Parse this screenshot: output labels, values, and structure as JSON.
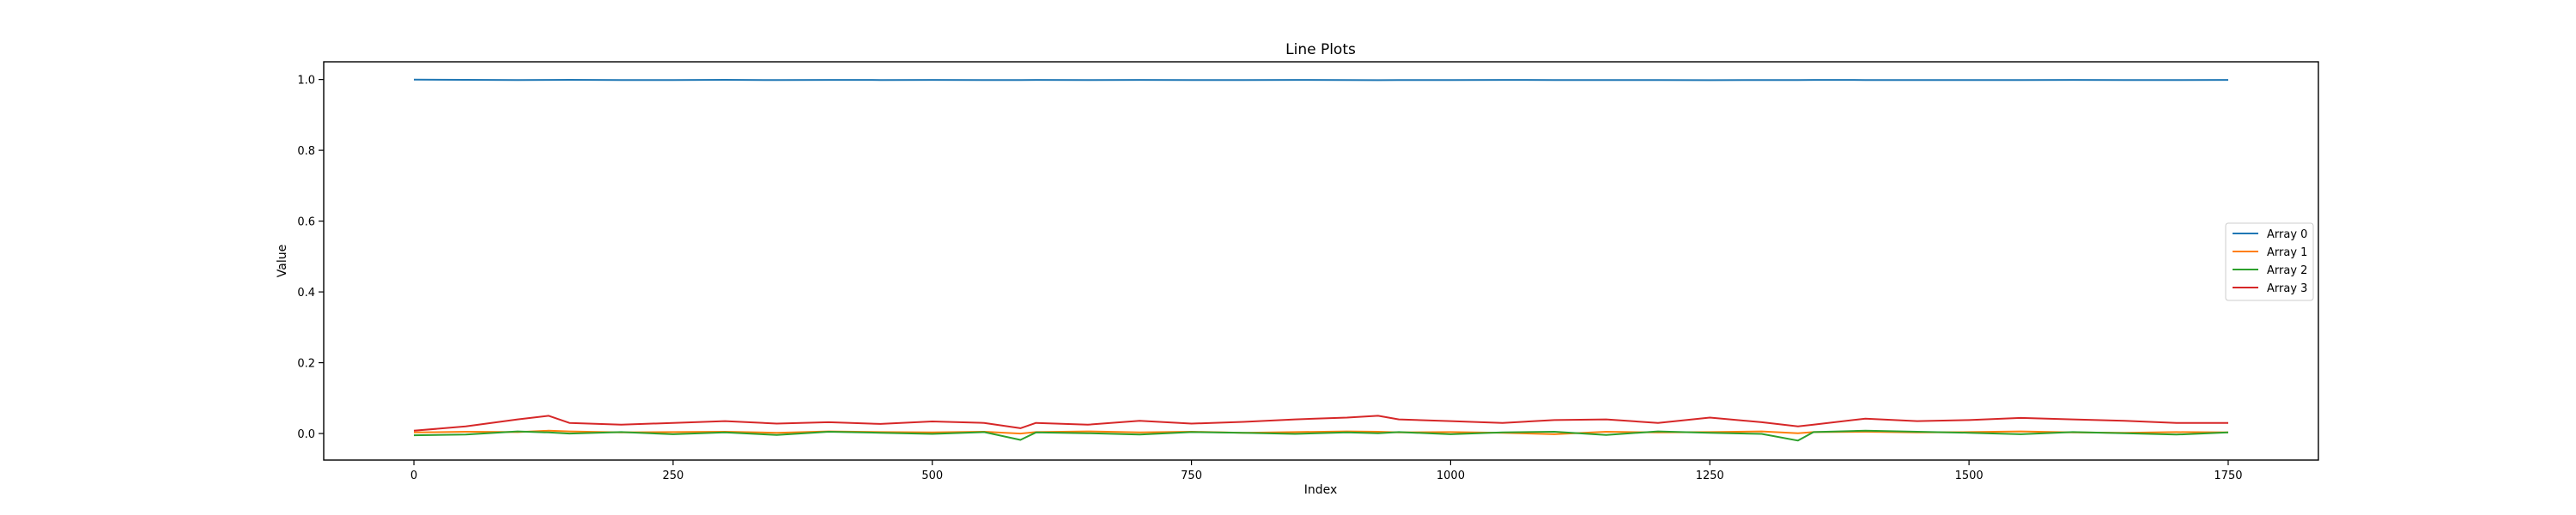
{
  "chart_data": {
    "type": "line",
    "title": "Line Plots",
    "xlabel": "Index",
    "ylabel": "Value",
    "xlim": [
      -87,
      1837
    ],
    "ylim": [
      -0.075,
      1.05
    ],
    "xticks": [
      0,
      250,
      500,
      750,
      1000,
      1250,
      1500,
      1750
    ],
    "xtick_labels": [
      "0",
      "250",
      "500",
      "750",
      "1000",
      "1250",
      "1500",
      "1750"
    ],
    "yticks": [
      0.0,
      0.2,
      0.4,
      0.6,
      0.8,
      1.0
    ],
    "ytick_labels": [
      "0.0",
      "0.2",
      "0.4",
      "0.6",
      "0.8",
      "1.0"
    ],
    "grid": false,
    "legend_position": "center-right",
    "x": [
      0,
      50,
      100,
      130,
      150,
      200,
      250,
      300,
      350,
      400,
      450,
      500,
      550,
      585,
      600,
      650,
      700,
      750,
      800,
      850,
      900,
      930,
      950,
      1000,
      1050,
      1100,
      1150,
      1200,
      1250,
      1300,
      1335,
      1350,
      1400,
      1450,
      1500,
      1550,
      1600,
      1650,
      1700,
      1750
    ],
    "series": [
      {
        "name": "Array 0",
        "color": "#1f77b4",
        "values": [
          0.9995,
          0.999,
          0.9985,
          0.9988,
          0.9992,
          0.9987,
          0.9986,
          0.999,
          0.9984,
          0.9988,
          0.9986,
          0.9989,
          0.9984,
          0.9987,
          0.9988,
          0.9985,
          0.9989,
          0.9986,
          0.9984,
          0.9988,
          0.9986,
          0.9982,
          0.9987,
          0.9985,
          0.9988,
          0.9986,
          0.9984,
          0.9987,
          0.9982,
          0.9986,
          0.9985,
          0.9988,
          0.9985,
          0.9987,
          0.9986,
          0.9984,
          0.9988,
          0.9986,
          0.9987,
          0.9988
        ]
      },
      {
        "name": "Array 1",
        "color": "#ff7f0e",
        "values": [
          0.003,
          0.005,
          0.004,
          0.008,
          0.006,
          0.003,
          0.004,
          0.005,
          0.002,
          0.006,
          0.004,
          0.003,
          0.005,
          0.0,
          0.004,
          0.006,
          0.003,
          0.005,
          0.002,
          0.004,
          0.006,
          0.005,
          0.003,
          0.004,
          0.002,
          -0.002,
          0.005,
          0.003,
          0.004,
          0.006,
          0.001,
          0.004,
          0.005,
          0.003,
          0.004,
          0.006,
          0.003,
          0.002,
          0.004,
          0.003
        ]
      },
      {
        "name": "Array 2",
        "color": "#2ca02c",
        "values": [
          -0.005,
          -0.003,
          0.006,
          0.003,
          0.0,
          0.004,
          -0.002,
          0.003,
          -0.004,
          0.005,
          0.002,
          -0.001,
          0.004,
          -0.018,
          0.003,
          0.001,
          -0.003,
          0.004,
          0.002,
          -0.001,
          0.003,
          0.001,
          0.004,
          -0.002,
          0.003,
          0.005,
          -0.004,
          0.006,
          0.002,
          -0.001,
          -0.02,
          0.004,
          0.008,
          0.005,
          0.002,
          -0.002,
          0.004,
          0.001,
          -0.003,
          0.003
        ]
      },
      {
        "name": "Array 3",
        "color": "#d62728",
        "values": [
          0.008,
          0.02,
          0.04,
          0.05,
          0.03,
          0.025,
          0.03,
          0.035,
          0.028,
          0.032,
          0.027,
          0.034,
          0.03,
          0.015,
          0.03,
          0.025,
          0.036,
          0.028,
          0.033,
          0.04,
          0.045,
          0.05,
          0.04,
          0.035,
          0.03,
          0.038,
          0.04,
          0.03,
          0.045,
          0.032,
          0.02,
          0.025,
          0.042,
          0.035,
          0.038,
          0.044,
          0.04,
          0.036,
          0.03,
          0.03
        ]
      }
    ]
  }
}
